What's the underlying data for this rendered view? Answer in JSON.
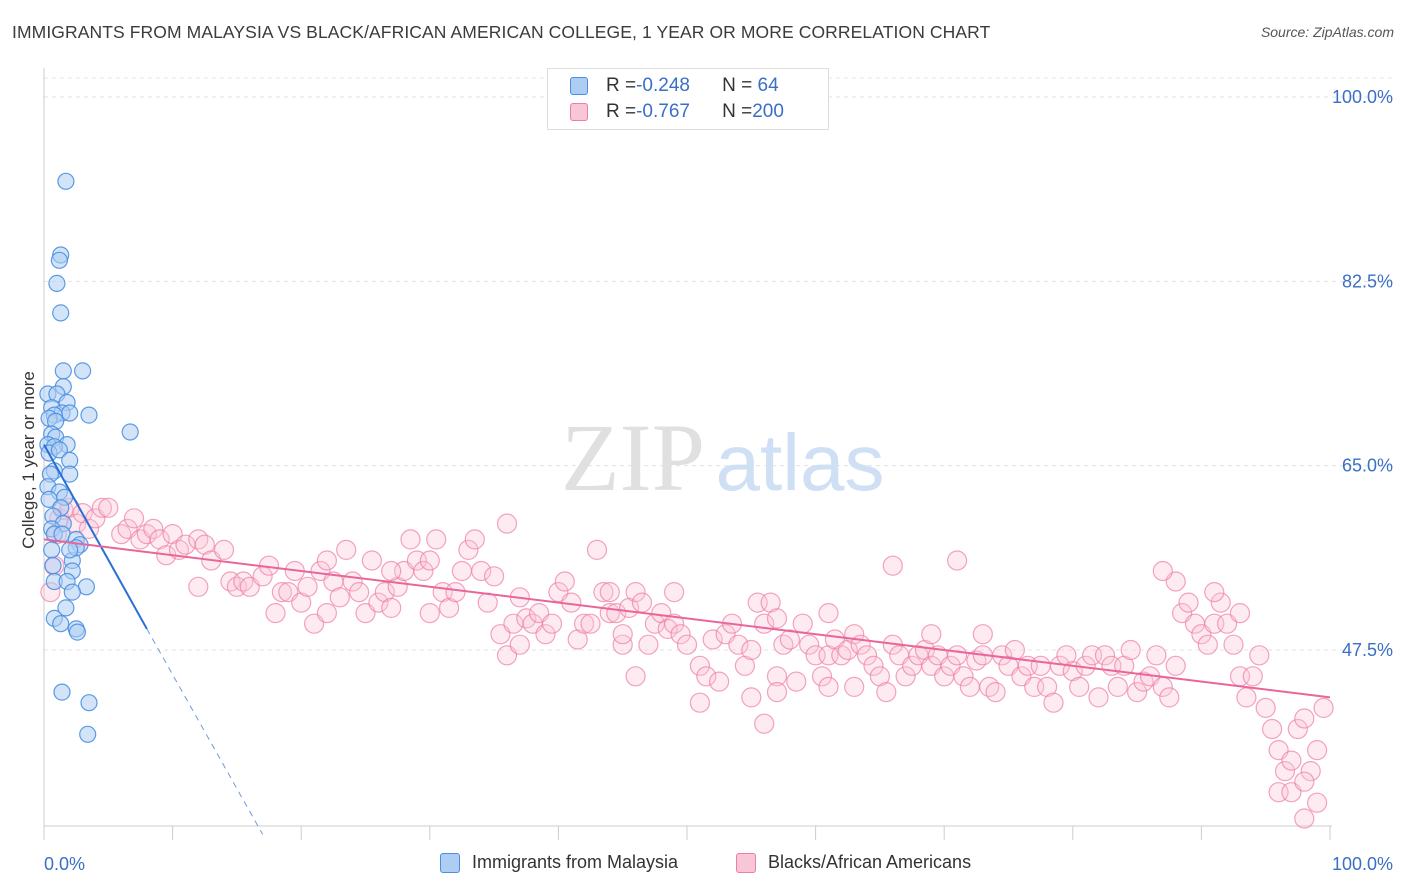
{
  "title": "IMMIGRANTS FROM MALAYSIA VS BLACK/AFRICAN AMERICAN COLLEGE, 1 YEAR OR MORE CORRELATION CHART",
  "source": "Source: ZipAtlas.com",
  "watermark": {
    "zip": "ZIP",
    "atlas": "atlas"
  },
  "legend_top": {
    "rows": [
      {
        "r_label": "R = ",
        "r_value": "-0.248",
        "n_label": "N = ",
        "n_value": " 64",
        "color": "#4a90e2"
      },
      {
        "r_label": "R = ",
        "r_value": "-0.767",
        "n_label": "N = ",
        "n_value": "200",
        "color": "#f07ca3"
      }
    ]
  },
  "chart_data": {
    "type": "scatter",
    "ylabel": "College, 1 year or more",
    "xlim": [
      0,
      100
    ],
    "ylim": [
      30,
      100
    ],
    "y_ticks": [
      {
        "value": 100.0,
        "label": "100.0%"
      },
      {
        "value": 82.5,
        "label": "82.5%"
      },
      {
        "value": 65.0,
        "label": "65.0%"
      },
      {
        "value": 47.5,
        "label": "47.5%"
      }
    ],
    "x_tick_labels": {
      "min": "0.0%",
      "max": "100.0%"
    },
    "grid": true,
    "series": [
      {
        "name": "Immigrants from Malaysia",
        "color": "#4a90e2",
        "fill": "#aecdf3",
        "trend": {
          "x0": 0,
          "y0": 67.0,
          "x1": 8,
          "y1": 49.5,
          "dash_to_x": 17,
          "dash_to_y": 30
        },
        "points": [
          [
            1.7,
            92
          ],
          [
            1.3,
            85
          ],
          [
            1.2,
            84.5
          ],
          [
            1.0,
            82.3
          ],
          [
            1.3,
            79.5
          ],
          [
            1.5,
            74
          ],
          [
            3.0,
            74
          ],
          [
            1.5,
            72.5
          ],
          [
            0.3,
            71.8
          ],
          [
            1.0,
            71.8
          ],
          [
            1.8,
            71
          ],
          [
            0.6,
            70.5
          ],
          [
            1.4,
            70
          ],
          [
            2.0,
            70
          ],
          [
            0.8,
            69.8
          ],
          [
            3.5,
            69.8
          ],
          [
            0.4,
            69.5
          ],
          [
            0.9,
            69.2
          ],
          [
            0.6,
            68
          ],
          [
            6.7,
            68.2
          ],
          [
            0.9,
            67.7
          ],
          [
            0.3,
            67
          ],
          [
            1.8,
            67
          ],
          [
            0.8,
            66.8
          ],
          [
            0.4,
            66.2
          ],
          [
            1.2,
            66.5
          ],
          [
            2.0,
            65.5
          ],
          [
            0.8,
            64.5
          ],
          [
            2.0,
            64.2
          ],
          [
            0.5,
            64.2
          ],
          [
            0.3,
            63
          ],
          [
            1.2,
            62.5
          ],
          [
            1.6,
            62
          ],
          [
            0.4,
            61.8
          ],
          [
            1.3,
            61
          ],
          [
            0.7,
            60.2
          ],
          [
            1.5,
            59.5
          ],
          [
            0.6,
            59
          ],
          [
            0.8,
            58.5
          ],
          [
            1.4,
            58.5
          ],
          [
            2.5,
            58
          ],
          [
            2.8,
            57.5
          ],
          [
            0.6,
            57
          ],
          [
            2.2,
            56
          ],
          [
            2.5,
            57.2
          ],
          [
            2.0,
            57
          ],
          [
            0.7,
            55.5
          ],
          [
            2.2,
            55
          ],
          [
            0.8,
            54
          ],
          [
            1.8,
            54
          ],
          [
            3.3,
            53.5
          ],
          [
            2.2,
            53
          ],
          [
            1.7,
            51.5
          ],
          [
            0.8,
            50.5
          ],
          [
            1.3,
            50
          ],
          [
            2.5,
            49.5
          ],
          [
            2.6,
            49.2
          ],
          [
            1.4,
            43.5
          ],
          [
            3.5,
            42.5
          ],
          [
            3.4,
            39.5
          ]
        ]
      },
      {
        "name": "Blacks/African Americans",
        "color": "#f07ca3",
        "fill": "#f9c6d7",
        "trend": {
          "x0": 0,
          "y0": 58.0,
          "x1": 100,
          "y1": 43.0
        },
        "points": [
          [
            0.5,
            53
          ],
          [
            0.8,
            55.5
          ],
          [
            1.0,
            58.5
          ],
          [
            1.2,
            60
          ],
          [
            1.5,
            60.8
          ],
          [
            2.0,
            61
          ],
          [
            2.5,
            59.5
          ],
          [
            3,
            60.5
          ],
          [
            3.5,
            59
          ],
          [
            4,
            60
          ],
          [
            4.5,
            61
          ],
          [
            5,
            61
          ],
          [
            6,
            58.5
          ],
          [
            6.5,
            59
          ],
          [
            7,
            60
          ],
          [
            7.5,
            58
          ],
          [
            8,
            58.5
          ],
          [
            8.5,
            59
          ],
          [
            9,
            58
          ],
          [
            9.5,
            56.5
          ],
          [
            10,
            58.5
          ],
          [
            10.5,
            57
          ],
          [
            11,
            57.5
          ],
          [
            12,
            58
          ],
          [
            12.5,
            57.5
          ],
          [
            13,
            56
          ],
          [
            12,
            53.5
          ],
          [
            14,
            57
          ],
          [
            14.5,
            54
          ],
          [
            15,
            53.5
          ],
          [
            15.5,
            54
          ],
          [
            16,
            53.5
          ],
          [
            17,
            54.5
          ],
          [
            17.5,
            55.5
          ],
          [
            18,
            51
          ],
          [
            18.5,
            53
          ],
          [
            19,
            53
          ],
          [
            19.5,
            55
          ],
          [
            20,
            52
          ],
          [
            20.5,
            53.5
          ],
          [
            21,
            50
          ],
          [
            21.5,
            55
          ],
          [
            22,
            56
          ],
          [
            22.5,
            54
          ],
          [
            23,
            52.5
          ],
          [
            23.5,
            57
          ],
          [
            24,
            54
          ],
          [
            24.5,
            53
          ],
          [
            25,
            51
          ],
          [
            25.5,
            56
          ],
          [
            26,
            52
          ],
          [
            26.5,
            53
          ],
          [
            27,
            51.5
          ],
          [
            27.5,
            53.5
          ],
          [
            28,
            55
          ],
          [
            28.5,
            58
          ],
          [
            29,
            56
          ],
          [
            29.5,
            55
          ],
          [
            30,
            56
          ],
          [
            30.5,
            58
          ],
          [
            31,
            53
          ],
          [
            31.5,
            51.5
          ],
          [
            32,
            53
          ],
          [
            32.5,
            55
          ],
          [
            33,
            57
          ],
          [
            33.5,
            58
          ],
          [
            34,
            55
          ],
          [
            34.5,
            52
          ],
          [
            35,
            54.5
          ],
          [
            35.5,
            49
          ],
          [
            36,
            47
          ],
          [
            36.5,
            50
          ],
          [
            37,
            52.5
          ],
          [
            37.5,
            50.5
          ],
          [
            38,
            50
          ],
          [
            38.5,
            51
          ],
          [
            39,
            49
          ],
          [
            39.5,
            50
          ],
          [
            40,
            53
          ],
          [
            40.5,
            54
          ],
          [
            41,
            52
          ],
          [
            41.5,
            48.5
          ],
          [
            42,
            50
          ],
          [
            42.5,
            50
          ],
          [
            43,
            57
          ],
          [
            43.5,
            53
          ],
          [
            44,
            51
          ],
          [
            44.5,
            51
          ],
          [
            45,
            48
          ],
          [
            45.5,
            51.5
          ],
          [
            46,
            53
          ],
          [
            46.5,
            52
          ],
          [
            47,
            48
          ],
          [
            47.5,
            50
          ],
          [
            48,
            51
          ],
          [
            48.5,
            49.5
          ],
          [
            49,
            50
          ],
          [
            49.5,
            49
          ],
          [
            50,
            48
          ],
          [
            51,
            46
          ],
          [
            51.5,
            45
          ],
          [
            52,
            48.5
          ],
          [
            52.5,
            44.5
          ],
          [
            53,
            49
          ],
          [
            53.5,
            50
          ],
          [
            54,
            48
          ],
          [
            54.5,
            46
          ],
          [
            55,
            47.5
          ],
          [
            55.5,
            52
          ],
          [
            56,
            50
          ],
          [
            56.5,
            52
          ],
          [
            57,
            50.5
          ],
          [
            57.5,
            48
          ],
          [
            58,
            48.5
          ],
          [
            58.5,
            44.5
          ],
          [
            59,
            50
          ],
          [
            59.5,
            48
          ],
          [
            60,
            47
          ],
          [
            60.5,
            45
          ],
          [
            61,
            47
          ],
          [
            61.5,
            48.5
          ],
          [
            62,
            47
          ],
          [
            62.5,
            47.5
          ],
          [
            63,
            49
          ],
          [
            63.5,
            48
          ],
          [
            64,
            47
          ],
          [
            64.5,
            46
          ],
          [
            65,
            45
          ],
          [
            65.5,
            43.5
          ],
          [
            66,
            48
          ],
          [
            66.5,
            47
          ],
          [
            67,
            45
          ],
          [
            67.5,
            46
          ],
          [
            68,
            47
          ],
          [
            68.5,
            47.5
          ],
          [
            69,
            46
          ],
          [
            69.5,
            47
          ],
          [
            70,
            45
          ],
          [
            70.5,
            46
          ],
          [
            71,
            47
          ],
          [
            71.5,
            45
          ],
          [
            72,
            44
          ],
          [
            72.5,
            46.5
          ],
          [
            73,
            47
          ],
          [
            73.5,
            44
          ],
          [
            74,
            43.5
          ],
          [
            74.5,
            47
          ],
          [
            75,
            46
          ],
          [
            75.5,
            47.5
          ],
          [
            76,
            45
          ],
          [
            76.5,
            46
          ],
          [
            77,
            44
          ],
          [
            77.5,
            46
          ],
          [
            78,
            44
          ],
          [
            78.5,
            42.5
          ],
          [
            79,
            46
          ],
          [
            79.5,
            47
          ],
          [
            80,
            45.5
          ],
          [
            80.5,
            44
          ],
          [
            81,
            46
          ],
          [
            81.5,
            47
          ],
          [
            82,
            43
          ],
          [
            82.5,
            47
          ],
          [
            83,
            46
          ],
          [
            83.5,
            44
          ],
          [
            84,
            46
          ],
          [
            84.5,
            47.5
          ],
          [
            85,
            43.5
          ],
          [
            85.5,
            44.5
          ],
          [
            86,
            45
          ],
          [
            86.5,
            47
          ],
          [
            87,
            44
          ],
          [
            87.5,
            43
          ],
          [
            88,
            46
          ],
          [
            88.5,
            51
          ],
          [
            89,
            52
          ],
          [
            89.5,
            50
          ],
          [
            90,
            49
          ],
          [
            90.5,
            48
          ],
          [
            91,
            50
          ],
          [
            91.5,
            52
          ],
          [
            92,
            50
          ],
          [
            92.5,
            48
          ],
          [
            93,
            45
          ],
          [
            93.5,
            43
          ],
          [
            94,
            45
          ],
          [
            94.5,
            47
          ],
          [
            95,
            42
          ],
          [
            95.5,
            40
          ],
          [
            96,
            38
          ],
          [
            96.5,
            36
          ],
          [
            97,
            37
          ],
          [
            97.5,
            40
          ],
          [
            98,
            41
          ],
          [
            98.5,
            36
          ],
          [
            99,
            38
          ],
          [
            99.5,
            42
          ],
          [
            56,
            40.5
          ],
          [
            51,
            42.5
          ],
          [
            63,
            44
          ],
          [
            66,
            55.5
          ],
          [
            71,
            56
          ],
          [
            88,
            54
          ],
          [
            91,
            53
          ],
          [
            30,
            51
          ],
          [
            45,
            49
          ],
          [
            57,
            45
          ],
          [
            87,
            55
          ],
          [
            93,
            51
          ],
          [
            46,
            45
          ],
          [
            44,
            53
          ],
          [
            49,
            53
          ],
          [
            36,
            59.5
          ],
          [
            27,
            55
          ],
          [
            22,
            51
          ],
          [
            37,
            48
          ],
          [
            55,
            43
          ],
          [
            57,
            43.5
          ],
          [
            61,
            44
          ],
          [
            96,
            34
          ],
          [
            97,
            34
          ],
          [
            98,
            35
          ],
          [
            99,
            33
          ],
          [
            98,
            31.5
          ],
          [
            61,
            51
          ],
          [
            69,
            49
          ],
          [
            73,
            49
          ]
        ]
      }
    ]
  },
  "bottom_legend": [
    {
      "label": "Immigrants from Malaysia",
      "color": "#4a90e2",
      "fill": "#aecdf3"
    },
    {
      "label": "Blacks/African Americans",
      "color": "#f07ca3",
      "fill": "#f9c6d7"
    }
  ]
}
